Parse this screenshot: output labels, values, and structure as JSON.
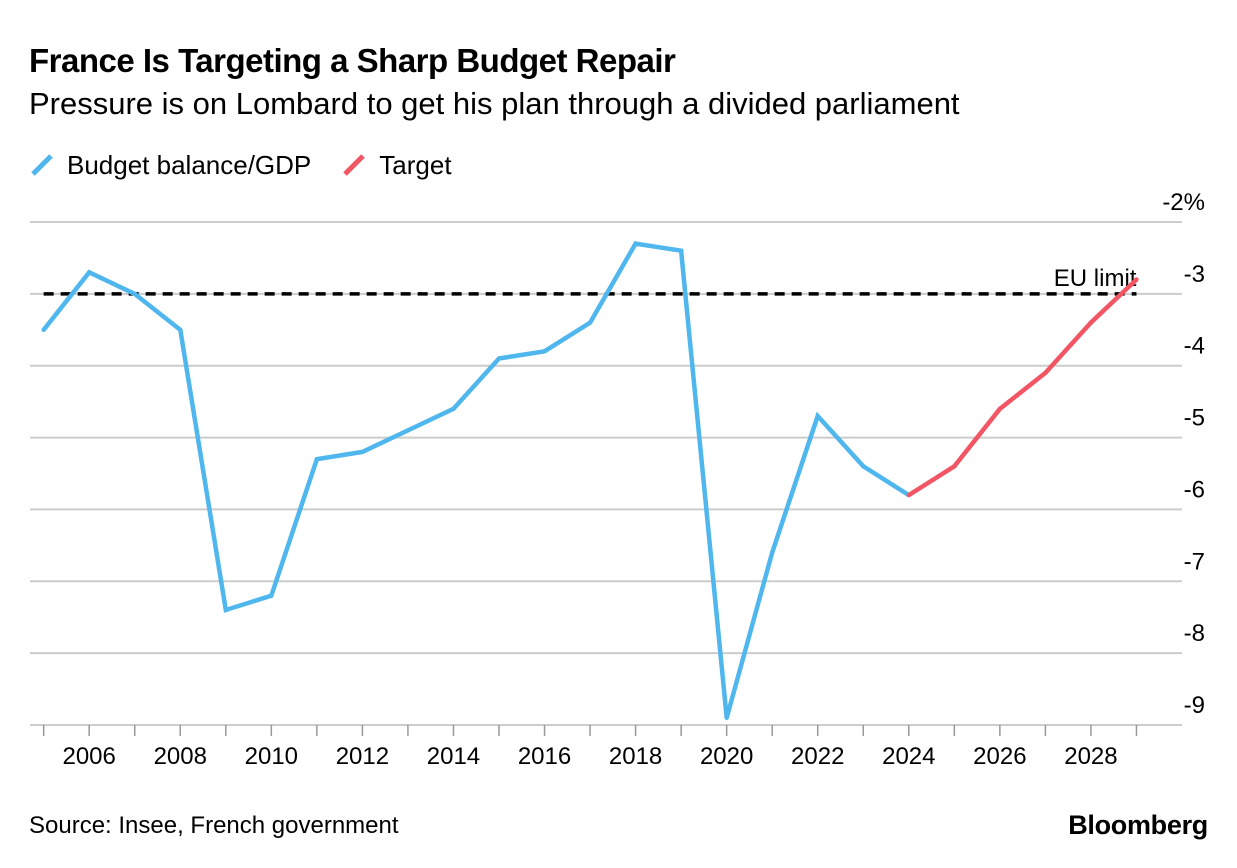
{
  "title": "France Is Targeting a Sharp Budget Repair",
  "subtitle": "Pressure is on Lombard to get his plan through a divided parliament",
  "source": "Source: Insee, French government",
  "brand": "Bloomberg",
  "colors": {
    "actual": "#4fb7ee",
    "target": "#f25563",
    "reference": "#000000",
    "grid": "#cccccc"
  },
  "chart_data": {
    "type": "line",
    "title": "France Is Targeting a Sharp Budget Repair",
    "subtitle": "Pressure is on Lombard to get his plan through a divided parliament",
    "xlabel": "",
    "ylabel": "",
    "xlim": [
      2004.7,
      2030
    ],
    "ylim": [
      -9,
      -2
    ],
    "y_axis_side": "right",
    "y_unit_suffix": "%",
    "grid": "horizontal",
    "legend_position": "top-left",
    "x_ticks": [
      2006,
      2008,
      2010,
      2012,
      2014,
      2016,
      2018,
      2020,
      2022,
      2024,
      2026,
      2028
    ],
    "x_tick_labels": [
      "2006",
      "2008",
      "2010",
      "2012",
      "2014",
      "2016",
      "2018",
      "2020",
      "2022",
      "2024",
      "2026",
      "2028"
    ],
    "y_ticks": [
      -2,
      -3,
      -4,
      -5,
      -6,
      -7,
      -8,
      -9
    ],
    "y_tick_labels": [
      "-2%",
      "-3",
      "-4",
      "-5",
      "-6",
      "-7",
      "-8",
      "-9"
    ],
    "series": [
      {
        "name": "Budget balance/GDP",
        "color": "#4fb7ee",
        "x": [
          2005,
          2006,
          2007,
          2008,
          2009,
          2010,
          2011,
          2012,
          2013,
          2014,
          2015,
          2016,
          2017,
          2018,
          2019,
          2020,
          2021,
          2022,
          2023,
          2024
        ],
        "y": [
          -3.5,
          -2.7,
          -3.0,
          -3.5,
          -7.4,
          -7.2,
          -5.3,
          -5.2,
          -4.9,
          -4.6,
          -3.9,
          -3.8,
          -3.4,
          -2.3,
          -2.4,
          -8.9,
          -6.6,
          -4.7,
          -5.4,
          -5.8
        ]
      },
      {
        "name": "Target",
        "color": "#f25563",
        "x": [
          2024,
          2025,
          2026,
          2027,
          2028,
          2029
        ],
        "y": [
          -5.8,
          -5.4,
          -4.6,
          -4.1,
          -3.4,
          -2.8
        ]
      }
    ],
    "reference_lines": [
      {
        "label": "EU limit",
        "y": -3,
        "style": "dashed",
        "color": "#000000"
      }
    ]
  }
}
